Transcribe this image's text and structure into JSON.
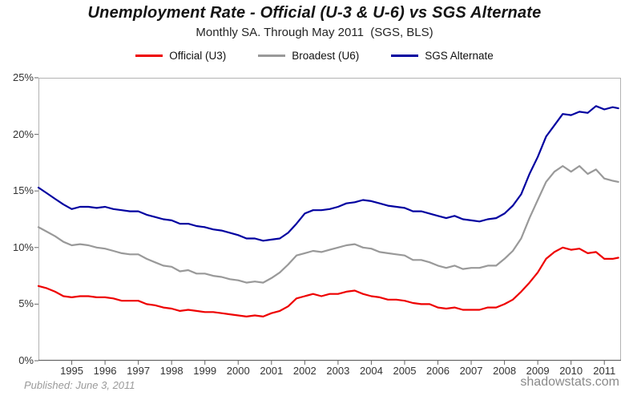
{
  "header": {
    "title": "Unemployment Rate - Official (U-3 & U-6) vs SGS Alternate",
    "subtitle": "Monthly SA. Through May 2011  (SGS, BLS)"
  },
  "legend": [
    {
      "label": "Official (U3)",
      "color": "#ee0000"
    },
    {
      "label": "Broadest (U6)",
      "color": "#999999"
    },
    {
      "label": "SGS Alternate",
      "color": "#0000a0"
    }
  ],
  "footer": {
    "published": "Published: June 3, 2011",
    "site": "shadowstats.com"
  },
  "colors": {
    "plot_border": "#b3b3b3",
    "axis": "#666666",
    "tick_text": "#333333"
  },
  "chart_data": {
    "type": "line",
    "title": "Unemployment Rate - Official (U-3 & U-6) vs SGS Alternate",
    "subtitle": "Monthly SA. Through May 2011 (SGS, BLS)",
    "xlabel": "",
    "ylabel": "",
    "xlim": [
      1994.0,
      2011.5
    ],
    "ylim": [
      0,
      25
    ],
    "grid": false,
    "legend_position": "top",
    "xticks": [
      1995,
      1996,
      1997,
      1998,
      1999,
      2000,
      2001,
      2002,
      2003,
      2004,
      2005,
      2006,
      2007,
      2008,
      2009,
      2010,
      2011
    ],
    "ytick_values": [
      0,
      5,
      10,
      15,
      20,
      25
    ],
    "yticks": [
      "0%",
      "5%",
      "10%",
      "15%",
      "20%",
      "25%"
    ],
    "x": [
      1994.0,
      1994.25,
      1994.5,
      1994.75,
      1995.0,
      1995.25,
      1995.5,
      1995.75,
      1996.0,
      1996.25,
      1996.5,
      1996.75,
      1997.0,
      1997.25,
      1997.5,
      1997.75,
      1998.0,
      1998.25,
      1998.5,
      1998.75,
      1999.0,
      1999.25,
      1999.5,
      1999.75,
      2000.0,
      2000.25,
      2000.5,
      2000.75,
      2001.0,
      2001.25,
      2001.5,
      2001.75,
      2002.0,
      2002.25,
      2002.5,
      2002.75,
      2003.0,
      2003.25,
      2003.5,
      2003.75,
      2004.0,
      2004.25,
      2004.5,
      2004.75,
      2005.0,
      2005.25,
      2005.5,
      2005.75,
      2006.0,
      2006.25,
      2006.5,
      2006.75,
      2007.0,
      2007.25,
      2007.5,
      2007.75,
      2008.0,
      2008.25,
      2008.5,
      2008.75,
      2009.0,
      2009.25,
      2009.5,
      2009.75,
      2010.0,
      2010.25,
      2010.5,
      2010.75,
      2011.0,
      2011.25,
      2011.42
    ],
    "series": [
      {
        "name": "Official (U3)",
        "color": "#ee0000",
        "values": [
          6.6,
          6.4,
          6.1,
          5.7,
          5.6,
          5.7,
          5.7,
          5.6,
          5.6,
          5.5,
          5.3,
          5.3,
          5.3,
          5.0,
          4.9,
          4.7,
          4.6,
          4.4,
          4.5,
          4.4,
          4.3,
          4.3,
          4.2,
          4.1,
          4.0,
          3.9,
          4.0,
          3.9,
          4.2,
          4.4,
          4.8,
          5.5,
          5.7,
          5.9,
          5.7,
          5.9,
          5.9,
          6.1,
          6.2,
          5.9,
          5.7,
          5.6,
          5.4,
          5.4,
          5.3,
          5.1,
          5.0,
          5.0,
          4.7,
          4.6,
          4.7,
          4.5,
          4.5,
          4.5,
          4.7,
          4.7,
          5.0,
          5.4,
          6.1,
          6.9,
          7.8,
          9.0,
          9.6,
          10.0,
          9.8,
          9.9,
          9.5,
          9.6,
          9.0,
          9.0,
          9.1
        ]
      },
      {
        "name": "Broadest (U6)",
        "color": "#999999",
        "values": [
          11.8,
          11.4,
          11.0,
          10.5,
          10.2,
          10.3,
          10.2,
          10.0,
          9.9,
          9.7,
          9.5,
          9.4,
          9.4,
          9.0,
          8.7,
          8.4,
          8.3,
          7.9,
          8.0,
          7.7,
          7.7,
          7.5,
          7.4,
          7.2,
          7.1,
          6.9,
          7.0,
          6.9,
          7.3,
          7.8,
          8.5,
          9.3,
          9.5,
          9.7,
          9.6,
          9.8,
          10.0,
          10.2,
          10.3,
          10.0,
          9.9,
          9.6,
          9.5,
          9.4,
          9.3,
          8.9,
          8.9,
          8.7,
          8.4,
          8.2,
          8.4,
          8.1,
          8.2,
          8.2,
          8.4,
          8.4,
          9.0,
          9.7,
          10.8,
          12.6,
          14.2,
          15.8,
          16.7,
          17.2,
          16.7,
          17.2,
          16.5,
          16.9,
          16.1,
          15.9,
          15.8
        ]
      },
      {
        "name": "SGS Alternate",
        "color": "#0000a0",
        "values": [
          15.3,
          14.8,
          14.3,
          13.8,
          13.4,
          13.6,
          13.6,
          13.5,
          13.6,
          13.4,
          13.3,
          13.2,
          13.2,
          12.9,
          12.7,
          12.5,
          12.4,
          12.1,
          12.1,
          11.9,
          11.8,
          11.6,
          11.5,
          11.3,
          11.1,
          10.8,
          10.8,
          10.6,
          10.7,
          10.8,
          11.3,
          12.1,
          13.0,
          13.3,
          13.3,
          13.4,
          13.6,
          13.9,
          14.0,
          14.2,
          14.1,
          13.9,
          13.7,
          13.6,
          13.5,
          13.2,
          13.2,
          13.0,
          12.8,
          12.6,
          12.8,
          12.5,
          12.4,
          12.3,
          12.5,
          12.6,
          13.0,
          13.7,
          14.7,
          16.5,
          18.0,
          19.8,
          20.8,
          21.8,
          21.7,
          22.0,
          21.9,
          22.5,
          22.2,
          22.4,
          22.3
        ]
      }
    ]
  }
}
